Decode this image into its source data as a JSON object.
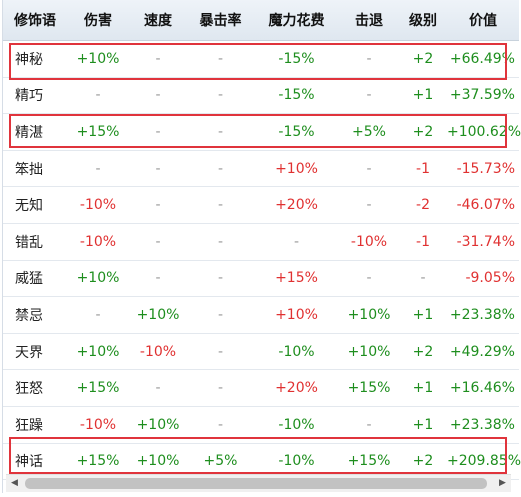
{
  "table": {
    "headers": [
      "修饰语",
      "伤害",
      "速度",
      "暴击率",
      "魔力花费",
      "击退",
      "级别",
      "价值"
    ],
    "rows": [
      [
        "神秘",
        "+10%",
        "-",
        "-",
        "-15%",
        "-",
        "+2",
        "+66.49%"
      ],
      [
        "精巧",
        "-",
        "-",
        "-",
        "-15%",
        "-",
        "+1",
        "+37.59%"
      ],
      [
        "精湛",
        "+15%",
        "-",
        "-",
        "-15%",
        "+5%",
        "+2",
        "+100.62%"
      ],
      [
        "笨拙",
        "-",
        "-",
        "-",
        "+10%",
        "-",
        "-1",
        "-15.73%"
      ],
      [
        "无知",
        "-10%",
        "-",
        "-",
        "+20%",
        "-",
        "-2",
        "-46.07%"
      ],
      [
        "错乱",
        "-10%",
        "-",
        "-",
        "-",
        "-10%",
        "-1",
        "-31.74%"
      ],
      [
        "威猛",
        "+10%",
        "-",
        "-",
        "+15%",
        "-",
        "-",
        "-9.05%"
      ],
      [
        "禁忌",
        "-",
        "+10%",
        "-",
        "+10%",
        "+10%",
        "+1",
        "+23.38%"
      ],
      [
        "天界",
        "+10%",
        "-10%",
        "-",
        "-10%",
        "+10%",
        "+2",
        "+49.29%"
      ],
      [
        "狂怒",
        "+15%",
        "-",
        "-",
        "+20%",
        "+15%",
        "+1",
        "+16.46%"
      ],
      [
        "狂躁",
        "-10%",
        "+10%",
        "-",
        "-10%",
        "-",
        "+1",
        "+23.38%"
      ],
      [
        "神话",
        "+15%",
        "+10%",
        "+5%",
        "-10%",
        "+15%",
        "+2",
        "+209.85%"
      ]
    ],
    "highlighted_rows": [
      "神秘",
      "精湛",
      "神话"
    ]
  },
  "scrollbar": {
    "left_icon": "arrow-left-icon",
    "right_icon": "arrow-right-icon"
  },
  "colors": {
    "positive": "#1e8e1e",
    "negative": "#e03131",
    "neutral": "#999999",
    "highlight": "#e0343c",
    "header_bg": "#e6edf4"
  }
}
